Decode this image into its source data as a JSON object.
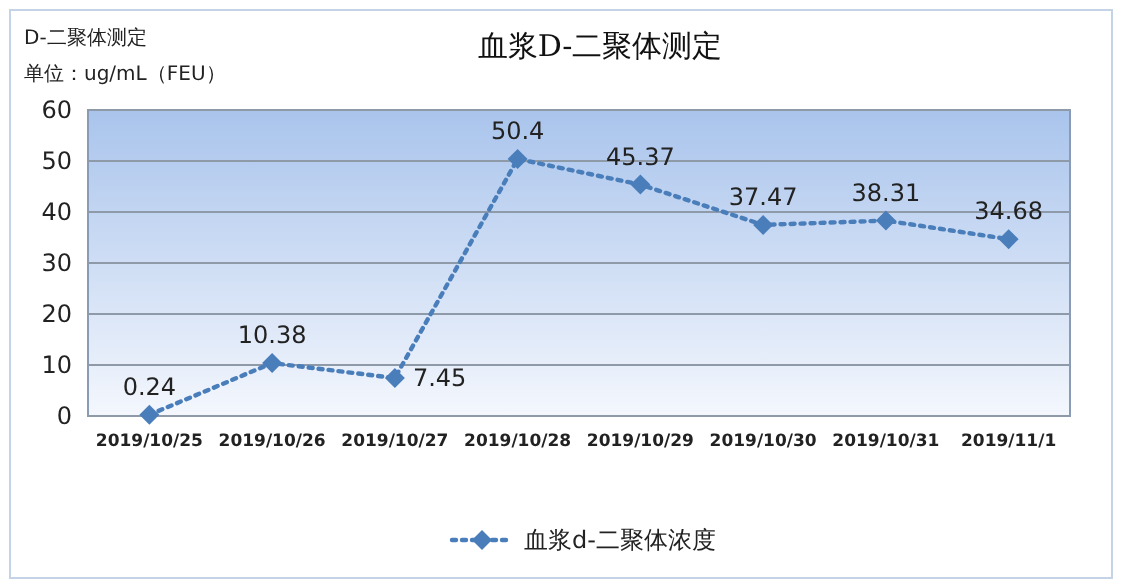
{
  "chart_data": {
    "type": "line",
    "title": "血浆D-二聚体测定",
    "ylabel": "单位：ug/mL（FEU）",
    "annotations": [
      "D-二聚体测定"
    ],
    "categories": [
      "2019/10/25",
      "2019/10/26",
      "2019/10/27",
      "2019/10/28",
      "2019/10/29",
      "2019/10/30",
      "2019/10/31",
      "2019/11/1"
    ],
    "series": [
      {
        "name": "血浆d-二聚体浓度",
        "color": "#4a7ebb",
        "values": [
          0.24,
          10.38,
          7.45,
          50.4,
          45.37,
          37.47,
          38.31,
          34.68
        ]
      }
    ],
    "ylim": [
      0,
      60
    ],
    "yticks": [
      0,
      10,
      20,
      30,
      40,
      50,
      60
    ],
    "grid": "y",
    "legend": "bottom",
    "marker": "diamond",
    "line_style": "dotted",
    "data_labels": true
  }
}
